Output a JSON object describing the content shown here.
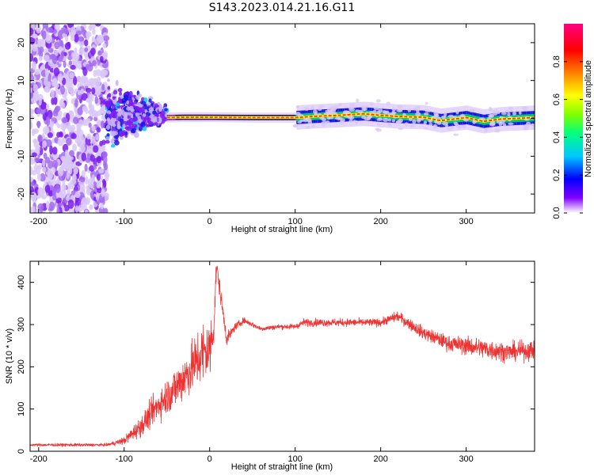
{
  "title": "S143.2023.014.21.16.G11",
  "colors": {
    "snr_line": "#ee3333",
    "axis": "#000000",
    "ridge": "#ff2a2a",
    "spectrogram_scatter": "#7a1cf0"
  },
  "chart_data": [
    {
      "type": "heatmap",
      "title": "",
      "xlabel": "Height of straight line (km)",
      "ylabel": "Frequency (Hz)",
      "xlim": [
        -210,
        380
      ],
      "ylim": [
        -25,
        25
      ],
      "x_ticks": [
        -200,
        -100,
        0,
        100,
        200,
        300
      ],
      "y_ticks": [
        20,
        10,
        0,
        -10,
        -20
      ],
      "colorbar": {
        "label": "Normalized spectral amplitude",
        "range": [
          0,
          1
        ],
        "ticks": [
          0.0,
          0.2,
          0.4,
          0.6,
          0.8
        ],
        "tick_labels": [
          "0.0",
          "0.2",
          "0.4",
          "0.6",
          "0.8"
        ],
        "colormap": [
          "#ffffff",
          "#8000ff",
          "#0000ff",
          "#00c8ff",
          "#00ff80",
          "#80ff00",
          "#ffff00",
          "#ff8000",
          "#ff0000",
          "#ff0080"
        ]
      },
      "regions": {
        "noise_x_range": [
          -210,
          -120
        ],
        "noise_freq_range": [
          -25,
          25
        ],
        "transition_x_range": [
          -120,
          -50
        ],
        "transition_freq_range": [
          -10,
          10
        ]
      },
      "ridge": {
        "x": [
          -50,
          -30,
          0,
          50,
          100,
          120,
          150,
          180,
          200,
          220,
          250,
          270,
          300,
          320,
          340,
          380
        ],
        "freq": [
          0.2,
          0.3,
          0.3,
          0.2,
          0.2,
          0.5,
          0.8,
          1.2,
          0.8,
          0.5,
          0.3,
          -0.6,
          0.2,
          -0.8,
          -0.2,
          0.2
        ]
      }
    },
    {
      "type": "line",
      "title": "",
      "xlabel": "Height of straight line (km)",
      "ylabel": "SNR (10 * v/v)",
      "xlim": [
        -210,
        380
      ],
      "ylim": [
        0,
        450
      ],
      "x_ticks": [
        -200,
        -100,
        0,
        100,
        200,
        300
      ],
      "y_ticks": [
        0,
        100,
        200,
        300,
        400
      ],
      "series": [
        {
          "x": [
            -210,
            -150,
            -120,
            -100,
            -80,
            -60,
            -40,
            -20,
            -10,
            0,
            5,
            8,
            20,
            30,
            40,
            50,
            60,
            80,
            100,
            110,
            150,
            200,
            220,
            250,
            280,
            300,
            330,
            350,
            380
          ],
          "y": [
            15,
            15,
            15,
            25,
            60,
            110,
            150,
            200,
            230,
            240,
            300,
            440,
            265,
            295,
            310,
            300,
            290,
            295,
            295,
            305,
            305,
            305,
            320,
            280,
            255,
            250,
            240,
            235,
            240
          ],
          "amp": [
            5,
            6,
            5,
            15,
            40,
            60,
            80,
            100,
            130,
            120,
            80,
            40,
            25,
            15,
            12,
            10,
            10,
            10,
            10,
            15,
            15,
            15,
            20,
            25,
            30,
            35,
            40,
            35,
            40
          ]
        }
      ]
    }
  ]
}
